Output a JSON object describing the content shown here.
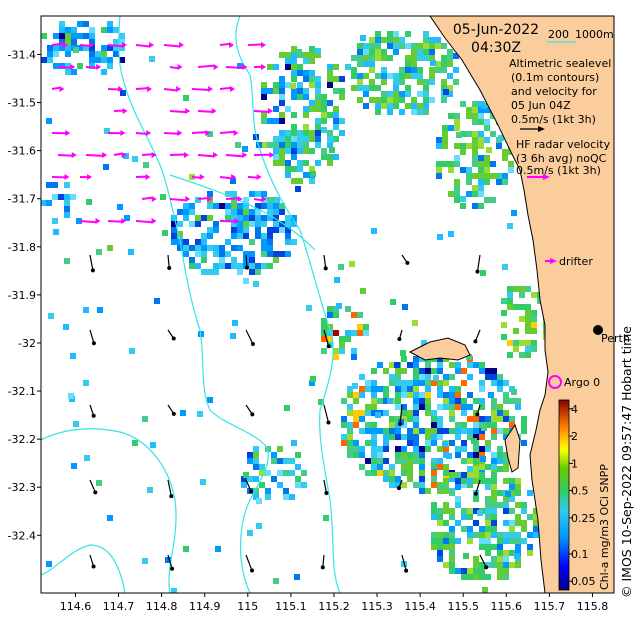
{
  "map": {
    "date": "05-Jun-2022",
    "time": "04:30Z",
    "contour_legend": {
      "shallow": "200",
      "deep": "1000m"
    },
    "altimetry_text": [
      "Altimetric sealevel",
      "(0.1m contours)",
      "and velocity for",
      "05 Jun 04Z",
      "0.5m/s (1kt 3h)"
    ],
    "hf_radar_text": [
      "HF radar velocity",
      "(3 6h avg) noQC",
      "0.5m/s (1kt 3h)"
    ],
    "drifter_label": "drifter",
    "argo_label": "Argo 0",
    "city_label": "Perth",
    "right_caption": "© IMOS 10-Sep-2022 09:57:47 Hobart time",
    "colorbar_title": "Chl-a mg/m3 OCi SNPP",
    "colors": {
      "land": "#fccd9c",
      "contour": "#33e6e6",
      "hf_arrow": "#ff00ff",
      "alt_arrow": "#000000"
    }
  },
  "chart_data": {
    "type": "heatmap",
    "x_ticks": [
      "114.6",
      "114.7",
      "114.8",
      "114.9",
      "115",
      "115.1",
      "115.2",
      "115.3",
      "115.4",
      "115.5",
      "115.6",
      "115.7",
      "115.8"
    ],
    "y_ticks": [
      "-31.4",
      "-31.5",
      "-31.6",
      "-31.7",
      "-31.8",
      "-31.9",
      "-32",
      "-32.1",
      "-32.2",
      "-32.3",
      "-32.4"
    ],
    "xlim": [
      114.52,
      115.85
    ],
    "ylim": [
      -32.52,
      -31.32
    ],
    "colorbar_ticks": [
      "4",
      "2",
      "1",
      "0.5",
      "0.25",
      "0.1",
      "0.05"
    ],
    "colorbar_values": [
      4,
      2,
      1,
      0.5,
      0.25,
      0.1,
      0.05
    ],
    "colorbar_scale": "log",
    "colorbar_range": [
      0.04,
      5
    ]
  }
}
